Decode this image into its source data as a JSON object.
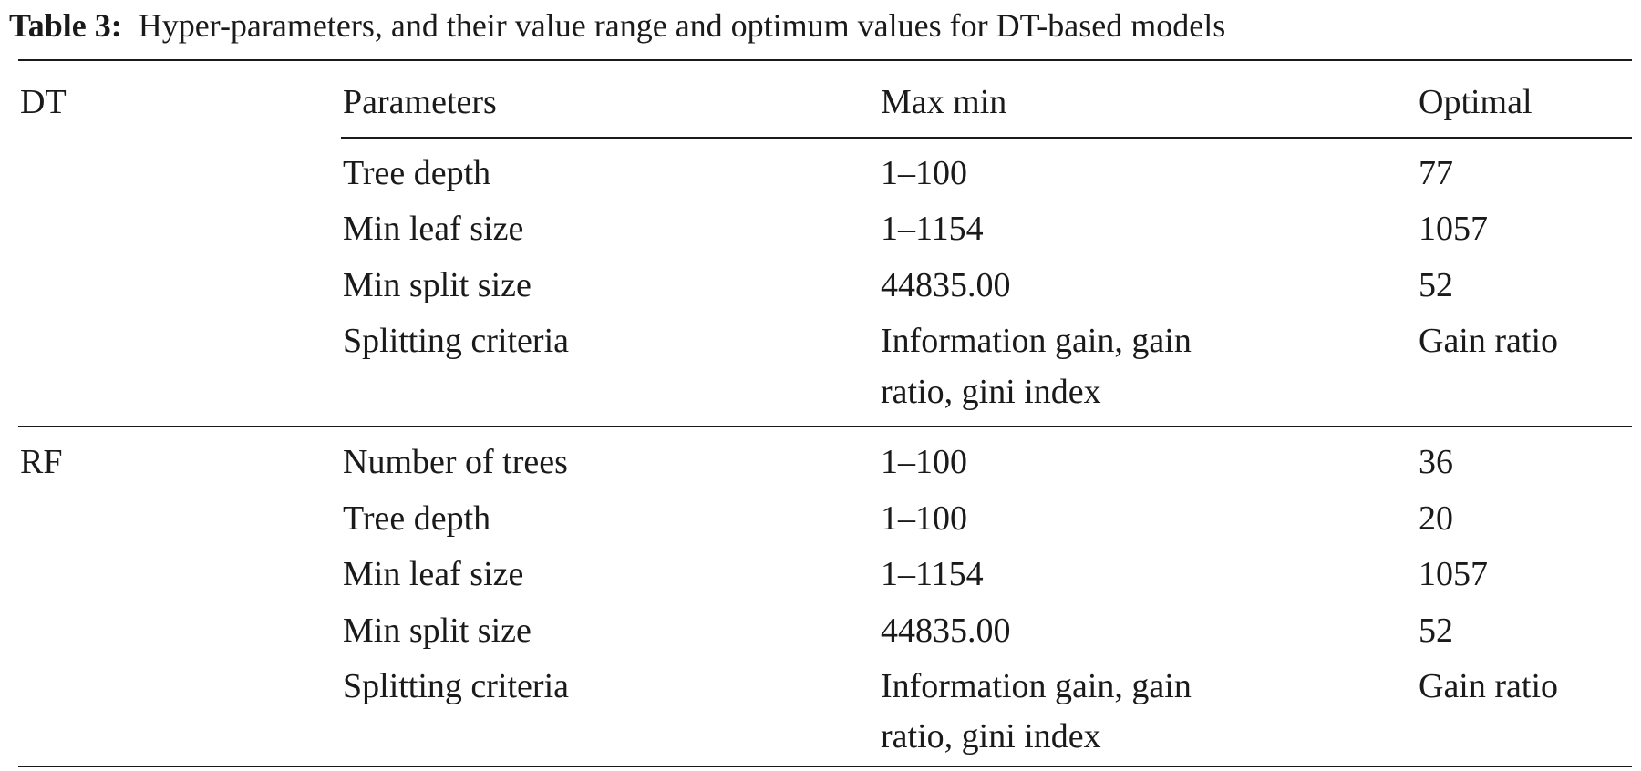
{
  "caption": {
    "label": "Table 3:",
    "text": "Hyper-parameters, and their value range and optimum values for DT-based models"
  },
  "table": {
    "headers": {
      "model": "DT",
      "parameters": "Parameters",
      "range": "Max min",
      "optimal": "Optimal"
    },
    "groups": [
      {
        "model": "DT",
        "rows": [
          {
            "parameter": "Tree depth",
            "range": "1–100",
            "range_line2": "",
            "optimal": "77"
          },
          {
            "parameter": "Min leaf size",
            "range": "1–1154",
            "range_line2": "",
            "optimal": "1057"
          },
          {
            "parameter": "Min split size",
            "range": "44835.00",
            "range_line2": "",
            "optimal": "52"
          },
          {
            "parameter": "Splitting criteria",
            "range": "Information gain, gain",
            "range_line2": "ratio, gini index",
            "optimal": "Gain ratio"
          }
        ]
      },
      {
        "model": "RF",
        "rows": [
          {
            "parameter": "Number of trees",
            "range": "1–100",
            "range_line2": "",
            "optimal": "36"
          },
          {
            "parameter": "Tree depth",
            "range": "1–100",
            "range_line2": "",
            "optimal": "20"
          },
          {
            "parameter": "Min leaf size",
            "range": "1–1154",
            "range_line2": "",
            "optimal": "1057"
          },
          {
            "parameter": "Min split size",
            "range": "44835.00",
            "range_line2": "",
            "optimal": "52"
          },
          {
            "parameter": "Splitting criteria",
            "range": "Information gain, gain",
            "range_line2": "ratio, gini index",
            "optimal": "Gain ratio"
          }
        ]
      }
    ]
  }
}
